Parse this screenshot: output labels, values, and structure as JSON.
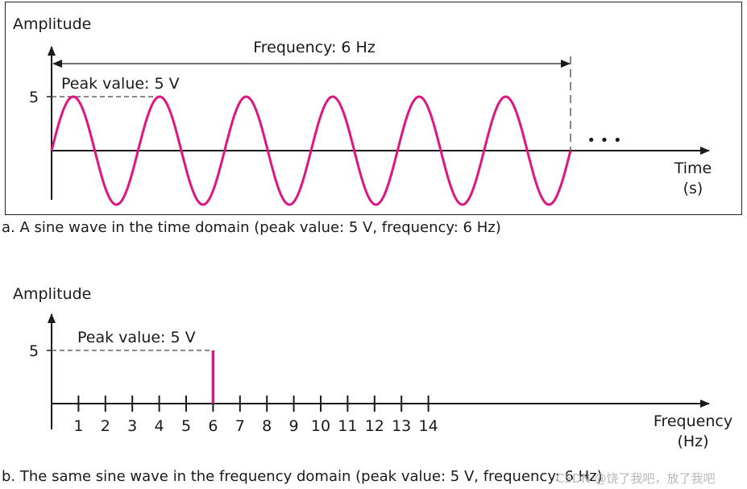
{
  "top": {
    "y_label": "Amplitude",
    "x_label_line1": "Time",
    "x_label_line2": "(s)",
    "frequency_label": "Frequency: 6 Hz",
    "peak_label": "Peak value: 5 V",
    "y_tick": "5",
    "ellipsis": "• • •",
    "caption": "a. A sine wave in the time domain (peak value: 5 V, frequency: 6 Hz)"
  },
  "bottom": {
    "y_label": "Amplitude",
    "x_label_line1": "Frequency",
    "x_label_line2": "(Hz)",
    "peak_label": "Peak value: 5 V",
    "y_tick": "5",
    "x_ticks": [
      "1",
      "2",
      "3",
      "4",
      "5",
      "6",
      "7",
      "8",
      "9",
      "10",
      "11",
      "12",
      "13",
      "14"
    ],
    "caption": "b. The same sine wave in the frequency domain (peak value: 5 V, frequency: 6 Hz)"
  },
  "signal": {
    "amplitude": 5,
    "frequency": 6,
    "cycles": 6
  },
  "colors": {
    "wave": "#e0157f",
    "axis": "#1a1a1a",
    "dash": "#444444"
  },
  "watermark": "CSDN @饶了我吧，放了我吧"
}
